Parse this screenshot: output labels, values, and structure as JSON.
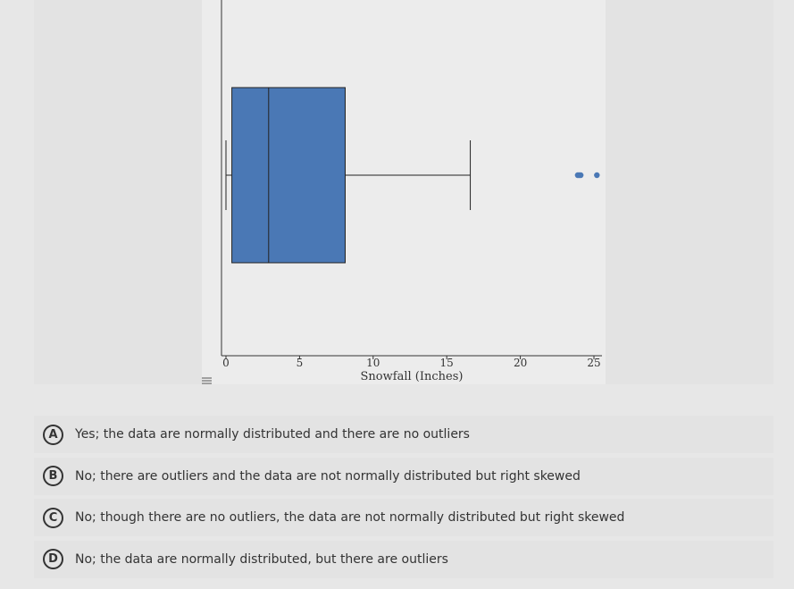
{
  "chart_data": {
    "type": "box",
    "orientation": "horizontal",
    "xlabel": "Snowfall (Inches)",
    "xlim": [
      -0.5,
      25.5
    ],
    "xticks": [
      0,
      5,
      10,
      15,
      20,
      25
    ],
    "box": {
      "whisker_low": 0,
      "q1": 0.4,
      "median": 2.9,
      "q3": 8.1,
      "whisker_high": 16.6
    },
    "outliers": [
      23.9,
      24.0,
      24.1,
      25.2
    ],
    "colors": {
      "box": "#4a78b5",
      "outlier": "#4a78b5",
      "line": "#222222"
    }
  },
  "icons": {
    "menu": "hamburger-menu-icon"
  },
  "options": [
    {
      "letter": "A",
      "text": "Yes; the data are normally distributed and there are no outliers"
    },
    {
      "letter": "B",
      "text": "No; there are outliers and the data are not normally distributed but right skewed"
    },
    {
      "letter": "C",
      "text": "No; though there are no outliers, the data are not normally distributed but right skewed"
    },
    {
      "letter": "D",
      "text": "No; the data are normally distributed, but there are outliers"
    }
  ]
}
